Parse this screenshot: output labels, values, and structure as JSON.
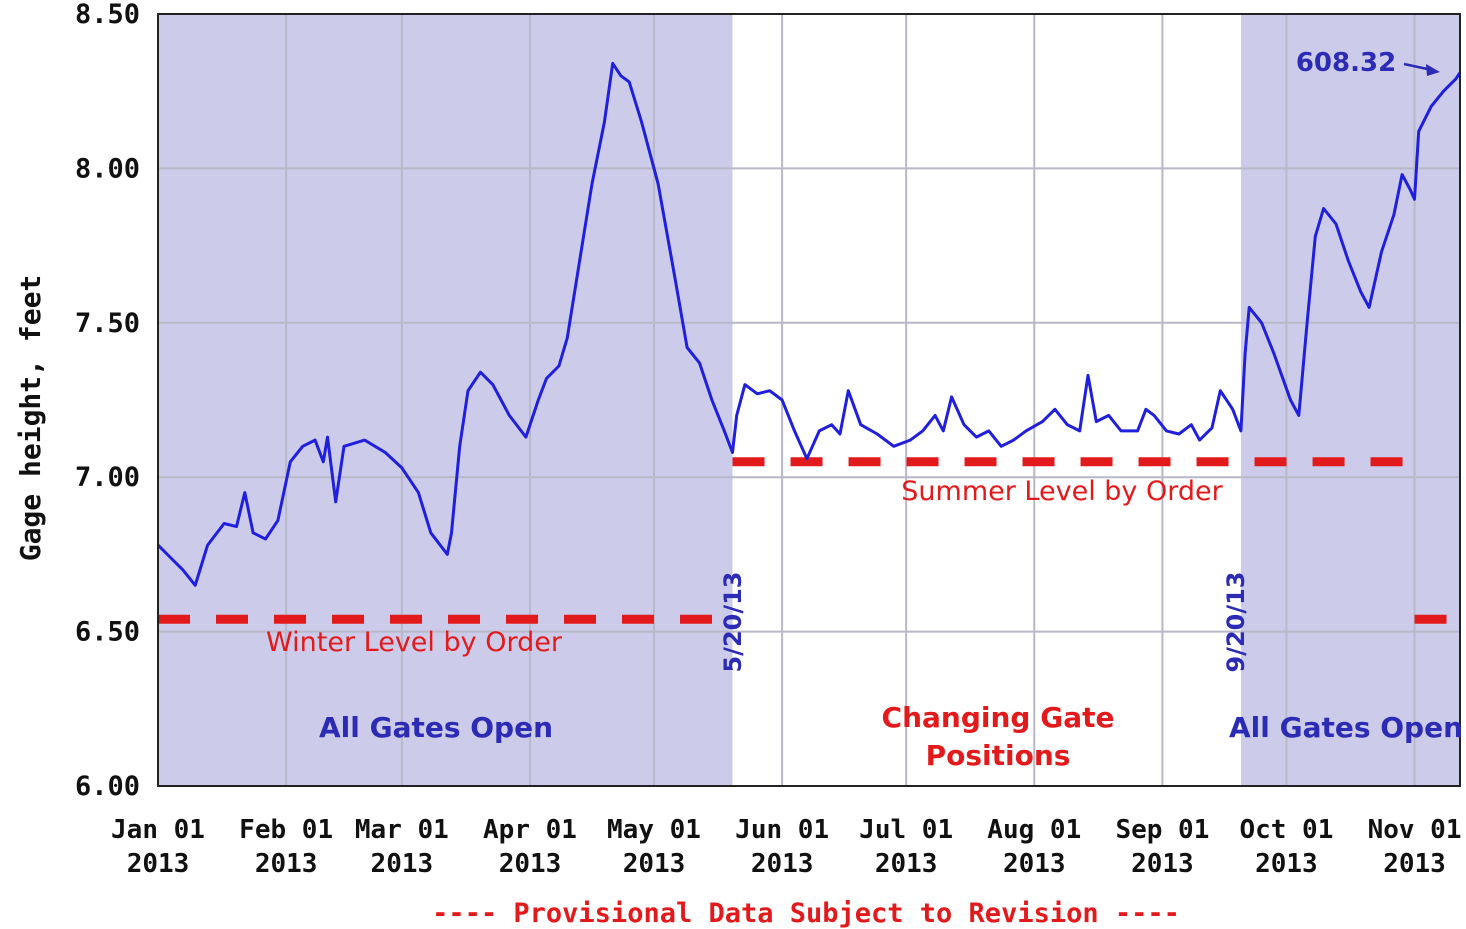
{
  "chart_data": {
    "type": "line",
    "title": "",
    "ylabel": "Gage height, feet",
    "xlabel": "",
    "ylim": [
      6.0,
      8.5
    ],
    "xlim": [
      "2013-01-01",
      "2013-11-12"
    ],
    "grid": true,
    "yticks": [
      "6.00",
      "6.50",
      "7.00",
      "7.50",
      "8.00",
      "8.50"
    ],
    "xticks": [
      {
        "date": "2013-01-01",
        "line1": "Jan 01",
        "line2": "2013"
      },
      {
        "date": "2013-02-01",
        "line1": "Feb 01",
        "line2": "2013"
      },
      {
        "date": "2013-03-01",
        "line1": "Mar 01",
        "line2": "2013"
      },
      {
        "date": "2013-04-01",
        "line1": "Apr 01",
        "line2": "2013"
      },
      {
        "date": "2013-05-01",
        "line1": "May 01",
        "line2": "2013"
      },
      {
        "date": "2013-06-01",
        "line1": "Jun 01",
        "line2": "2013"
      },
      {
        "date": "2013-07-01",
        "line1": "Jul 01",
        "line2": "2013"
      },
      {
        "date": "2013-08-01",
        "line1": "Aug 01",
        "line2": "2013"
      },
      {
        "date": "2013-09-01",
        "line1": "Sep 01",
        "line2": "2013"
      },
      {
        "date": "2013-10-01",
        "line1": "Oct 01",
        "line2": "2013"
      },
      {
        "date": "2013-11-01",
        "line1": "Nov 01",
        "line2": "2013"
      }
    ],
    "series": [
      {
        "color": "#1f1fdd",
        "points": [
          [
            "2013-01-01",
            6.78
          ],
          [
            "2013-01-04",
            6.74
          ],
          [
            "2013-01-07",
            6.7
          ],
          [
            "2013-01-10",
            6.65
          ],
          [
            "2013-01-13",
            6.78
          ],
          [
            "2013-01-17",
            6.85
          ],
          [
            "2013-01-20",
            6.84
          ],
          [
            "2013-01-22",
            6.95
          ],
          [
            "2013-01-24",
            6.82
          ],
          [
            "2013-01-27",
            6.8
          ],
          [
            "2013-01-30",
            6.86
          ],
          [
            "2013-02-02",
            7.05
          ],
          [
            "2013-02-05",
            7.1
          ],
          [
            "2013-02-08",
            7.12
          ],
          [
            "2013-02-10",
            7.05
          ],
          [
            "2013-02-11",
            7.13
          ],
          [
            "2013-02-13",
            6.92
          ],
          [
            "2013-02-15",
            7.1
          ],
          [
            "2013-02-20",
            7.12
          ],
          [
            "2013-02-25",
            7.08
          ],
          [
            "2013-03-01",
            7.03
          ],
          [
            "2013-03-05",
            6.95
          ],
          [
            "2013-03-08",
            6.82
          ],
          [
            "2013-03-12",
            6.75
          ],
          [
            "2013-03-13",
            6.82
          ],
          [
            "2013-03-15",
            7.1
          ],
          [
            "2013-03-17",
            7.28
          ],
          [
            "2013-03-20",
            7.34
          ],
          [
            "2013-03-23",
            7.3
          ],
          [
            "2013-03-27",
            7.2
          ],
          [
            "2013-03-31",
            7.13
          ],
          [
            "2013-04-03",
            7.25
          ],
          [
            "2013-04-05",
            7.32
          ],
          [
            "2013-04-08",
            7.36
          ],
          [
            "2013-04-10",
            7.45
          ],
          [
            "2013-04-13",
            7.7
          ],
          [
            "2013-04-16",
            7.95
          ],
          [
            "2013-04-19",
            8.15
          ],
          [
            "2013-04-21",
            8.34
          ],
          [
            "2013-04-23",
            8.3
          ],
          [
            "2013-04-25",
            8.28
          ],
          [
            "2013-04-28",
            8.15
          ],
          [
            "2013-05-02",
            7.95
          ],
          [
            "2013-05-06",
            7.65
          ],
          [
            "2013-05-09",
            7.42
          ],
          [
            "2013-05-12",
            7.37
          ],
          [
            "2013-05-15",
            7.25
          ],
          [
            "2013-05-18",
            7.15
          ],
          [
            "2013-05-20",
            7.08
          ],
          [
            "2013-05-21",
            7.2
          ],
          [
            "2013-05-23",
            7.3
          ],
          [
            "2013-05-26",
            7.27
          ],
          [
            "2013-05-29",
            7.28
          ],
          [
            "2013-06-01",
            7.25
          ],
          [
            "2013-06-04",
            7.15
          ],
          [
            "2013-06-07",
            7.06
          ],
          [
            "2013-06-10",
            7.15
          ],
          [
            "2013-06-13",
            7.17
          ],
          [
            "2013-06-15",
            7.14
          ],
          [
            "2013-06-17",
            7.28
          ],
          [
            "2013-06-20",
            7.17
          ],
          [
            "2013-06-24",
            7.14
          ],
          [
            "2013-06-28",
            7.1
          ],
          [
            "2013-07-02",
            7.12
          ],
          [
            "2013-07-05",
            7.15
          ],
          [
            "2013-07-08",
            7.2
          ],
          [
            "2013-07-10",
            7.15
          ],
          [
            "2013-07-12",
            7.26
          ],
          [
            "2013-07-15",
            7.17
          ],
          [
            "2013-07-18",
            7.13
          ],
          [
            "2013-07-21",
            7.15
          ],
          [
            "2013-07-24",
            7.1
          ],
          [
            "2013-07-27",
            7.12
          ],
          [
            "2013-07-30",
            7.15
          ],
          [
            "2013-08-03",
            7.18
          ],
          [
            "2013-08-06",
            7.22
          ],
          [
            "2013-08-09",
            7.17
          ],
          [
            "2013-08-12",
            7.15
          ],
          [
            "2013-08-14",
            7.33
          ],
          [
            "2013-08-16",
            7.18
          ],
          [
            "2013-08-19",
            7.2
          ],
          [
            "2013-08-22",
            7.15
          ],
          [
            "2013-08-26",
            7.15
          ],
          [
            "2013-08-28",
            7.22
          ],
          [
            "2013-08-30",
            7.2
          ],
          [
            "2013-09-02",
            7.15
          ],
          [
            "2013-09-05",
            7.14
          ],
          [
            "2013-09-08",
            7.17
          ],
          [
            "2013-09-10",
            7.12
          ],
          [
            "2013-09-13",
            7.16
          ],
          [
            "2013-09-15",
            7.28
          ],
          [
            "2013-09-18",
            7.22
          ],
          [
            "2013-09-20",
            7.15
          ],
          [
            "2013-09-21",
            7.4
          ],
          [
            "2013-09-22",
            7.55
          ],
          [
            "2013-09-25",
            7.5
          ],
          [
            "2013-09-28",
            7.4
          ],
          [
            "2013-10-02",
            7.25
          ],
          [
            "2013-10-04",
            7.2
          ],
          [
            "2013-10-06",
            7.5
          ],
          [
            "2013-10-08",
            7.78
          ],
          [
            "2013-10-10",
            7.87
          ],
          [
            "2013-10-13",
            7.82
          ],
          [
            "2013-10-16",
            7.7
          ],
          [
            "2013-10-19",
            7.6
          ],
          [
            "2013-10-21",
            7.55
          ],
          [
            "2013-10-24",
            7.73
          ],
          [
            "2013-10-27",
            7.85
          ],
          [
            "2013-10-29",
            7.98
          ],
          [
            "2013-10-31",
            7.93
          ],
          [
            "2013-11-01",
            7.9
          ],
          [
            "2013-11-02",
            8.12
          ],
          [
            "2013-11-05",
            8.2
          ],
          [
            "2013-11-08",
            8.25
          ],
          [
            "2013-11-11",
            8.29
          ],
          [
            "2013-11-12",
            8.31
          ]
        ]
      }
    ],
    "shaded_periods": [
      {
        "start": "2013-01-01",
        "end": "2013-05-20",
        "color": "#ccccea"
      },
      {
        "start": "2013-09-20",
        "end": "2013-11-12",
        "color": "#ccccea"
      }
    ],
    "reference_lines": [
      {
        "name": "Winter Level by Order",
        "y": 6.54,
        "color": "#e31a1c",
        "segments": [
          [
            "2013-01-01",
            "2013-05-20"
          ],
          [
            "2013-11-01",
            "2013-11-12"
          ]
        ]
      },
      {
        "name": "Summer Level by Order",
        "y": 7.05,
        "color": "#e31a1c",
        "segments": [
          [
            "2013-05-20",
            "2013-11-01"
          ]
        ]
      }
    ],
    "annotations": {
      "latest_value": "608.32",
      "date_start": "5/20/13",
      "date_end": "9/20/13",
      "region_left": "All Gates Open",
      "region_middle_1": "Changing Gate",
      "region_middle_2": "Positions",
      "region_right": "All Gates Open",
      "winter_label": "Winter Level by Order",
      "summer_label": "Summer Level by Order"
    },
    "footer": "---- Provisional Data Subject to Revision ----"
  }
}
